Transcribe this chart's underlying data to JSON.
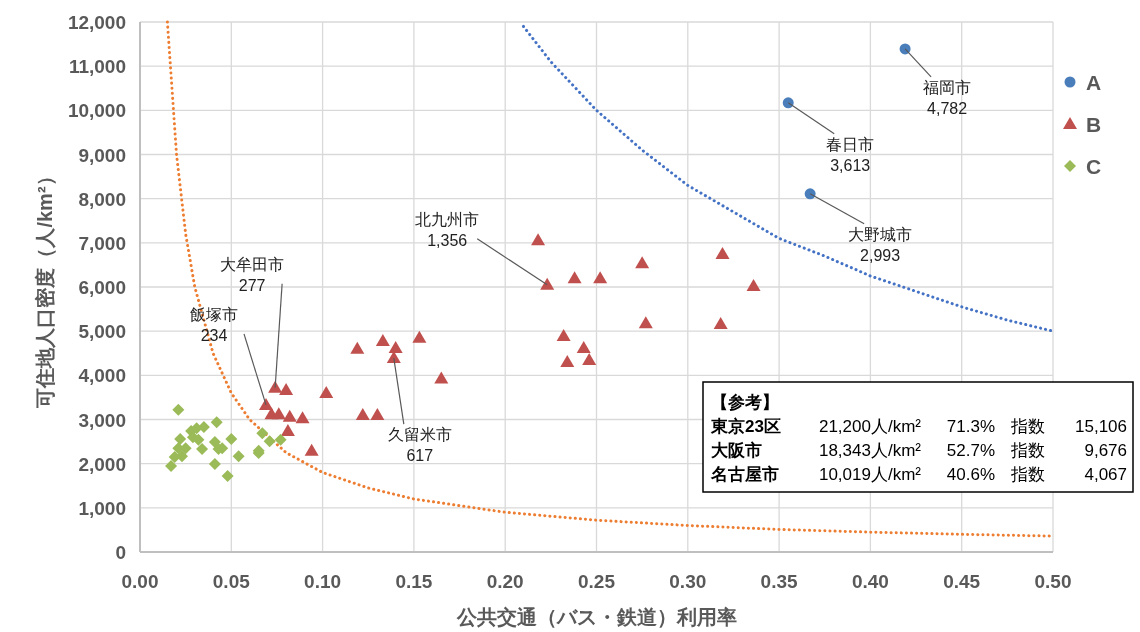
{
  "chart_data": {
    "type": "scatter",
    "xlabel": "公共交通（バス・鉄道）利用率",
    "ylabel": "可住地人口密度（人/km²）",
    "xlim": [
      0,
      0.5
    ],
    "ylim": [
      0,
      12000
    ],
    "xticks": [
      {
        "value": 0,
        "label": "0.00"
      },
      {
        "value": 0.05,
        "label": "0.05"
      },
      {
        "value": 0.1,
        "label": "0.10"
      },
      {
        "value": 0.15,
        "label": "0.15"
      },
      {
        "value": 0.2,
        "label": "0.20"
      },
      {
        "value": 0.25,
        "label": "0.25"
      },
      {
        "value": 0.3,
        "label": "0.30"
      },
      {
        "value": 0.35,
        "label": "0.35"
      },
      {
        "value": 0.4,
        "label": "0.40"
      },
      {
        "value": 0.45,
        "label": "0.45"
      },
      {
        "value": 0.5,
        "label": "0.50"
      }
    ],
    "yticks": [
      0,
      {
        "value": 1000,
        "label": "1,000"
      },
      {
        "value": 2000,
        "label": "2,000"
      },
      {
        "value": 3000,
        "label": "3,000"
      },
      {
        "value": 4000,
        "label": "4,000"
      },
      {
        "value": 5000,
        "label": "5,000"
      },
      {
        "value": 6000,
        "label": "6,000"
      },
      {
        "value": 7000,
        "label": "7,000"
      },
      {
        "value": 8000,
        "label": "8,000"
      },
      {
        "value": 9000,
        "label": "9,000"
      },
      {
        "value": 10000,
        "label": "10,000"
      },
      {
        "value": 11000,
        "label": "11,000"
      },
      {
        "value": 12000,
        "label": "12,000"
      }
    ],
    "grid": true,
    "legend": "right",
    "series": [
      {
        "type": "line",
        "color": "#ed7d31",
        "line_style": "dotted",
        "marker": "none",
        "x": [
          0.015,
          0.02,
          0.025,
          0.03,
          0.04,
          0.05,
          0.06,
          0.08,
          0.1,
          0.125,
          0.15,
          0.2,
          0.25,
          0.3,
          0.35,
          0.4,
          0.45,
          0.5
        ],
        "values": [
          12000,
          9000,
          7200,
          6000,
          4500,
          3600,
          3000,
          2250,
          1800,
          1450,
          1200,
          900,
          720,
          600,
          510,
          450,
          400,
          360
        ]
      },
      {
        "type": "line",
        "color": "#4472c4",
        "line_style": "dotted",
        "marker": "none",
        "x": [
          0.21,
          0.225,
          0.25,
          0.275,
          0.3,
          0.325,
          0.35,
          0.375,
          0.4,
          0.425,
          0.45,
          0.475,
          0.5
        ],
        "values": [
          11900,
          11100,
          10000,
          9100,
          8300,
          7700,
          7100,
          6700,
          6250,
          5900,
          5550,
          5250,
          5000
        ]
      },
      {
        "name": "A",
        "type": "scatter",
        "marker": "circle",
        "color": "#4a7ebb",
        "x": [
          0.419,
          0.355,
          0.367
        ],
        "values": [
          11390,
          10170,
          8110
        ]
      },
      {
        "name": "B",
        "type": "scatter",
        "marker": "triangle",
        "color": "#c0504d",
        "x": [
          0.218,
          0.223,
          0.238,
          0.252,
          0.275,
          0.319,
          0.336,
          0.277,
          0.318,
          0.232,
          0.243,
          0.234,
          0.246,
          0.153,
          0.165,
          0.119,
          0.133,
          0.14,
          0.139,
          0.102,
          0.122,
          0.13,
          0.074,
          0.08,
          0.069,
          0.072,
          0.076,
          0.082,
          0.089,
          0.081,
          0.094
        ],
        "values": [
          7060,
          6050,
          6200,
          6200,
          6540,
          6750,
          6020,
          5180,
          5160,
          4890,
          4620,
          4300,
          4350,
          4850,
          3930,
          4600,
          4780,
          4620,
          4390,
          3600,
          3100,
          3100,
          3720,
          3670,
          3330,
          3120,
          3120,
          3060,
          3030,
          2740,
          2290
        ]
      },
      {
        "name": "C",
        "type": "scatter",
        "marker": "diamond",
        "color": "#9bbb59",
        "x": [
          0.021,
          0.042,
          0.028,
          0.031,
          0.035,
          0.022,
          0.029,
          0.032,
          0.041,
          0.05,
          0.067,
          0.071,
          0.077,
          0.021,
          0.025,
          0.034,
          0.043,
          0.045,
          0.019,
          0.023,
          0.054,
          0.065,
          0.065,
          0.017,
          0.041,
          0.048
        ],
        "values": [
          3220,
          2940,
          2740,
          2800,
          2830,
          2560,
          2600,
          2540,
          2490,
          2560,
          2690,
          2510,
          2540,
          2350,
          2350,
          2330,
          2330,
          2350,
          2150,
          2170,
          2170,
          2240,
          2290,
          1950,
          1990,
          1720
        ]
      }
    ],
    "annotations": [
      {
        "text": "福岡市\n4,782",
        "x": 0.419,
        "y": 11390
      },
      {
        "text": "春日市\n3,613",
        "x": 0.355,
        "y": 10170
      },
      {
        "text": "大野城市\n2,993",
        "x": 0.367,
        "y": 8110
      },
      {
        "text": "北九州市\n1,356",
        "x": 0.223,
        "y": 6050
      },
      {
        "text": "久留米市\n617",
        "x": 0.139,
        "y": 4390
      },
      {
        "text": "大牟田市\n277",
        "x": 0.074,
        "y": 3720
      },
      {
        "text": "飯塚市\n234",
        "x": 0.069,
        "y": 3330
      },
      "【参考】",
      "東京23区 21,200人/km² 71.3% 指数 15,106",
      "大阪市 18,343人/km² 52.7% 指数 9,676",
      "名古屋市 10,019人/km² 40.6% 指数 4,067"
    ]
  }
}
